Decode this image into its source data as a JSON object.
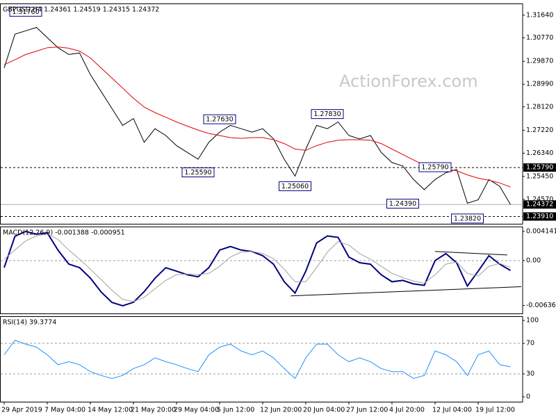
{
  "watermark": "ActionForex.com",
  "chart_data": [
    {
      "type": "line",
      "title": "GBPUSD,H4  1.24361 1.24519 1.24315 1.24372",
      "categories": [
        "29 Apr 2019",
        null,
        null,
        null,
        "7 May 04:00",
        null,
        null,
        null,
        "14 May 12:00",
        null,
        null,
        null,
        "21 May 20:00",
        null,
        null,
        null,
        "29 May 04:00",
        null,
        null,
        null,
        "5 Jun 12:00",
        null,
        null,
        null,
        "12 Jun 20:00",
        null,
        null,
        null,
        "20 Jun 04:00",
        null,
        null,
        null,
        "27 Jun 12:00",
        null,
        null,
        null,
        "4 Jul 20:00",
        null,
        null,
        null,
        "12 Jul 04:00",
        null,
        null,
        null,
        "19 Jul 12:00",
        null,
        null,
        null
      ],
      "series": [
        {
          "color": "#000000",
          "linewidth": 1,
          "values": [
            1.2961,
            1.3091,
            1.3104,
            1.3117,
            1.3078,
            1.3039,
            1.3013,
            1.3019,
            1.2936,
            1.2871,
            1.2806,
            1.2741,
            1.2767,
            1.2676,
            1.2728,
            1.2702,
            1.2663,
            1.2637,
            1.2611,
            1.2676,
            1.2715,
            1.2741,
            1.2728,
            1.2715,
            1.2728,
            1.2689,
            1.2611,
            1.2546,
            1.265,
            1.2741,
            1.2728,
            1.2754,
            1.2702,
            1.2689,
            1.2702,
            1.2637,
            1.2598,
            1.2585,
            1.2533,
            1.2494,
            1.2533,
            1.2559,
            1.2572,
            1.2442,
            1.2455,
            1.2533,
            1.2507,
            1.2437
          ]
        },
        {
          "color": "#e00000",
          "linewidth": 1,
          "values": [
            1.2974,
            1.2993,
            1.3013,
            1.3026,
            1.3039,
            1.3042,
            1.3037,
            1.3026,
            1.3,
            1.2961,
            1.2923,
            1.2884,
            1.2845,
            1.2811,
            1.279,
            1.2772,
            1.2754,
            1.2738,
            1.2723,
            1.271,
            1.2702,
            1.2694,
            1.2691,
            1.2694,
            1.2694,
            1.2686,
            1.2671,
            1.265,
            1.2645,
            1.2663,
            1.2676,
            1.2684,
            1.2686,
            1.2686,
            1.2684,
            1.2671,
            1.265,
            1.2629,
            1.2608,
            1.2588,
            1.2577,
            1.2572,
            1.2567,
            1.2551,
            1.2538,
            1.253,
            1.252,
            1.2504
          ]
        }
      ],
      "ylim": [
        1.2363,
        1.3209
      ],
      "yticks": [
        {
          "value": 1.3164,
          "label": "1.31640"
        },
        {
          "value": 1.3077,
          "label": "1.30770"
        },
        {
          "value": 1.2987,
          "label": "1.29870"
        },
        {
          "value": 1.2899,
          "label": "1.28990"
        },
        {
          "value": 1.2812,
          "label": "1.28120"
        },
        {
          "value": 1.2722,
          "label": "1.27220"
        },
        {
          "value": 1.2634,
          "label": "1.26340"
        },
        {
          "value": 1.2545,
          "label": "1.25450"
        },
        {
          "value": 1.2457,
          "label": "1.24570"
        }
      ],
      "hlines": [
        {
          "value": 1.2579,
          "label": "1.25790"
        },
        {
          "value": 1.2391,
          "label": "1.23910"
        }
      ],
      "last": 1.24372,
      "annotations": [
        {
          "x": 2,
          "value": 1.3176,
          "label": "1.31760"
        },
        {
          "x": 20,
          "value": 1.2763,
          "label": "1.27630"
        },
        {
          "x": 18,
          "value": 1.2559,
          "label": "1.25590"
        },
        {
          "x": 30,
          "value": 1.2783,
          "label": "1.27830"
        },
        {
          "x": 27,
          "value": 1.2506,
          "label": "1.25060"
        },
        {
          "x": 40,
          "value": 1.2579,
          "label": "1.25790"
        },
        {
          "x": 37,
          "value": 1.2439,
          "label": "1.24390"
        },
        {
          "x": 43,
          "value": 1.2382,
          "label": "1.23820"
        }
      ]
    },
    {
      "type": "line",
      "title": "MACD(12,26,9) -0.001388 -0.000951",
      "series": [
        {
          "color": "#000080",
          "linewidth": 2,
          "values": [
            -0.00099,
            0.00345,
            0.00414,
            0.00375,
            0.00394,
            0.00148,
            -0.00049,
            -0.00099,
            -0.00247,
            -0.00444,
            -0.00592,
            -0.0064,
            -0.0059,
            -0.0044,
            -0.0025,
            -0.001,
            -0.0015,
            -0.002,
            -0.0023,
            -0.001,
            0.0015,
            0.002,
            0.0015,
            0.0013,
            0.0007,
            -0.0005,
            -0.003,
            -0.0046,
            -0.0015,
            0.0025,
            0.0035,
            0.0033,
            0.0005,
            -0.0003,
            -0.0005,
            -0.002,
            -0.003,
            -0.0028,
            -0.0033,
            -0.0035,
            0,
            0.001,
            -0.0003,
            -0.0036,
            -0.0015,
            0.0007,
            -0.0005,
            -0.001388
          ]
        },
        {
          "color": "#a0a0a0",
          "linewidth": 1,
          "values": [
            0.0002,
            0.0015,
            0.0028,
            0.0035,
            0.0038,
            0.003,
            0.0015,
            0.0002,
            -0.0012,
            -0.0027,
            -0.0042,
            -0.0055,
            -0.0058,
            -0.0052,
            -0.004,
            -0.0028,
            -0.002,
            -0.0019,
            -0.002,
            -0.0018,
            -0.0008,
            0.0005,
            0.0012,
            0.0013,
            0.001,
            0.0003,
            -0.0012,
            -0.003,
            -0.003,
            -0.001,
            0.0012,
            0.0027,
            0.0022,
            0.001,
            0.0002,
            -0.0008,
            -0.0018,
            -0.0024,
            -0.0029,
            -0.0032,
            -0.002,
            -0.0005,
            -0.0002,
            -0.0018,
            -0.0022,
            -0.0008,
            -0.0004,
            -0.000951
          ]
        }
      ],
      "ylim": [
        -0.00749,
        0.00483
      ],
      "yticks": [
        0.004141,
        {
          "value": 0,
          "label": "0.00"
        },
        -0.006365
      ],
      "levels": [
        0
      ],
      "trendlines": [
        {
          "x": [
            40,
            46.7
          ],
          "y": [
            0.0013,
            0.0008
          ]
        },
        {
          "x": [
            26.6,
            48
          ],
          "y": [
            -0.005,
            -0.0037
          ]
        }
      ]
    },
    {
      "type": "line",
      "title": "RSI(14) 39.3774",
      "series": [
        {
          "color": "#1e90ff",
          "linewidth": 1,
          "values": [
            55,
            74,
            69,
            65,
            55,
            42,
            46,
            42,
            33,
            28,
            24,
            28,
            37,
            42,
            51,
            46,
            42,
            37,
            33,
            55,
            65,
            69,
            60,
            55,
            60,
            51,
            37,
            24,
            51,
            69,
            69,
            55,
            46,
            51,
            46,
            37,
            33,
            33,
            24,
            28,
            60,
            55,
            46,
            28,
            55,
            60,
            42,
            39.3774
          ]
        }
      ],
      "ylim": [
        -6.4,
        105.5
      ],
      "yticks": [
        100,
        70,
        30,
        0
      ],
      "levels": [
        70,
        30
      ]
    }
  ]
}
